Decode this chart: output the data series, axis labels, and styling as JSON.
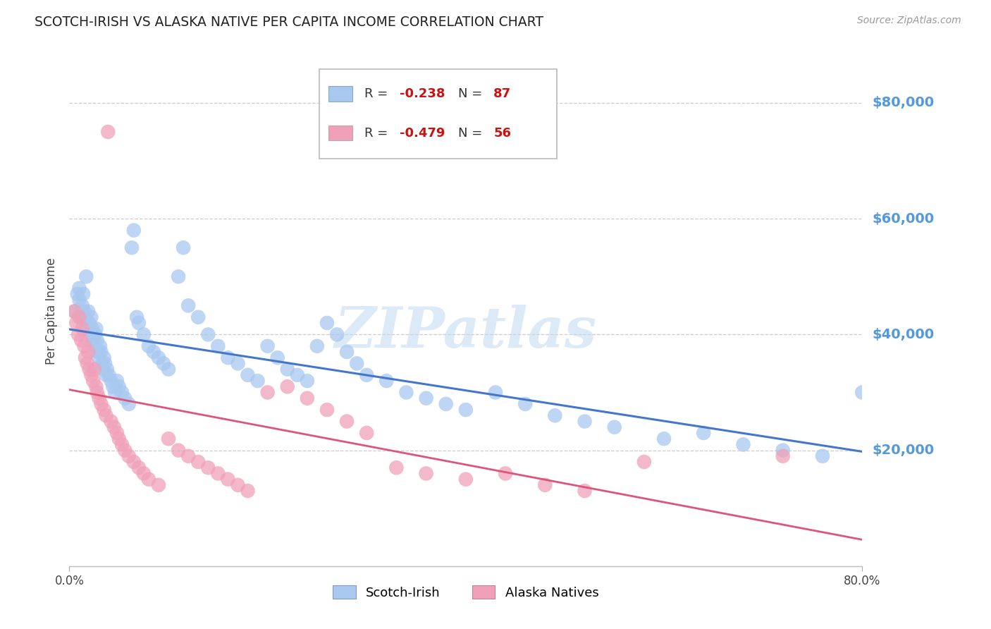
{
  "title": "SCOTCH-IRISH VS ALASKA NATIVE PER CAPITA INCOME CORRELATION CHART",
  "source": "Source: ZipAtlas.com",
  "ylabel": "Per Capita Income",
  "ytick_labels": [
    "$20,000",
    "$40,000",
    "$60,000",
    "$80,000"
  ],
  "ytick_values": [
    20000,
    40000,
    60000,
    80000
  ],
  "ylim": [
    0,
    88000
  ],
  "xlim": [
    0.0,
    0.8
  ],
  "legend_blue_label": "Scotch-Irish",
  "legend_pink_label": "Alaska Natives",
  "R_blue": -0.238,
  "N_blue": 87,
  "R_pink": -0.479,
  "N_pink": 56,
  "blue_color": "#A8C8F0",
  "pink_color": "#F0A0B8",
  "blue_line_color": "#4477CC",
  "pink_line_color": "#DD5577",
  "background_color": "#FFFFFF",
  "grid_color": "#CCCCCC",
  "title_color": "#222222",
  "watermark_color": "#C0D8F0",
  "right_label_color": "#5599DD",
  "scotch_irish_x": [
    0.005,
    0.008,
    0.01,
    0.01,
    0.012,
    0.013,
    0.014,
    0.015,
    0.016,
    0.017,
    0.018,
    0.019,
    0.02,
    0.021,
    0.022,
    0.023,
    0.024,
    0.025,
    0.026,
    0.027,
    0.028,
    0.029,
    0.03,
    0.031,
    0.032,
    0.033,
    0.034,
    0.035,
    0.036,
    0.037,
    0.038,
    0.04,
    0.042,
    0.044,
    0.046,
    0.048,
    0.05,
    0.053,
    0.056,
    0.06,
    0.063,
    0.065,
    0.068,
    0.07,
    0.075,
    0.08,
    0.085,
    0.09,
    0.095,
    0.1,
    0.11,
    0.115,
    0.12,
    0.13,
    0.14,
    0.15,
    0.16,
    0.17,
    0.18,
    0.19,
    0.2,
    0.21,
    0.22,
    0.23,
    0.24,
    0.25,
    0.26,
    0.27,
    0.28,
    0.29,
    0.3,
    0.32,
    0.34,
    0.36,
    0.38,
    0.4,
    0.43,
    0.46,
    0.49,
    0.52,
    0.55,
    0.6,
    0.64,
    0.68,
    0.72,
    0.76,
    0.8
  ],
  "scotch_irish_y": [
    44000,
    47000,
    48000,
    46000,
    43000,
    45000,
    47000,
    44000,
    43000,
    50000,
    41000,
    44000,
    42000,
    40000,
    43000,
    41000,
    39000,
    38000,
    40000,
    41000,
    39000,
    37000,
    36000,
    38000,
    37000,
    35000,
    34000,
    36000,
    35000,
    33000,
    34000,
    33000,
    32000,
    31000,
    30000,
    32000,
    31000,
    30000,
    29000,
    28000,
    55000,
    58000,
    43000,
    42000,
    40000,
    38000,
    37000,
    36000,
    35000,
    34000,
    50000,
    55000,
    45000,
    43000,
    40000,
    38000,
    36000,
    35000,
    33000,
    32000,
    38000,
    36000,
    34000,
    33000,
    32000,
    38000,
    42000,
    40000,
    37000,
    35000,
    33000,
    32000,
    30000,
    29000,
    28000,
    27000,
    30000,
    28000,
    26000,
    25000,
    24000,
    22000,
    23000,
    21000,
    20000,
    19000,
    30000
  ],
  "alaska_native_x": [
    0.005,
    0.007,
    0.009,
    0.01,
    0.012,
    0.013,
    0.015,
    0.016,
    0.018,
    0.019,
    0.02,
    0.022,
    0.024,
    0.025,
    0.027,
    0.028,
    0.03,
    0.032,
    0.035,
    0.037,
    0.039,
    0.042,
    0.045,
    0.048,
    0.05,
    0.053,
    0.056,
    0.06,
    0.065,
    0.07,
    0.075,
    0.08,
    0.09,
    0.1,
    0.11,
    0.12,
    0.13,
    0.14,
    0.15,
    0.16,
    0.17,
    0.18,
    0.2,
    0.22,
    0.24,
    0.26,
    0.28,
    0.3,
    0.33,
    0.36,
    0.4,
    0.44,
    0.48,
    0.52,
    0.58,
    0.72
  ],
  "alaska_native_y": [
    44000,
    42000,
    40000,
    43000,
    39000,
    41000,
    38000,
    36000,
    35000,
    37000,
    34000,
    33000,
    32000,
    34000,
    31000,
    30000,
    29000,
    28000,
    27000,
    26000,
    75000,
    25000,
    24000,
    23000,
    22000,
    21000,
    20000,
    19000,
    18000,
    17000,
    16000,
    15000,
    14000,
    22000,
    20000,
    19000,
    18000,
    17000,
    16000,
    15000,
    14000,
    13000,
    30000,
    31000,
    29000,
    27000,
    25000,
    23000,
    17000,
    16000,
    15000,
    16000,
    14000,
    13000,
    18000,
    19000
  ]
}
